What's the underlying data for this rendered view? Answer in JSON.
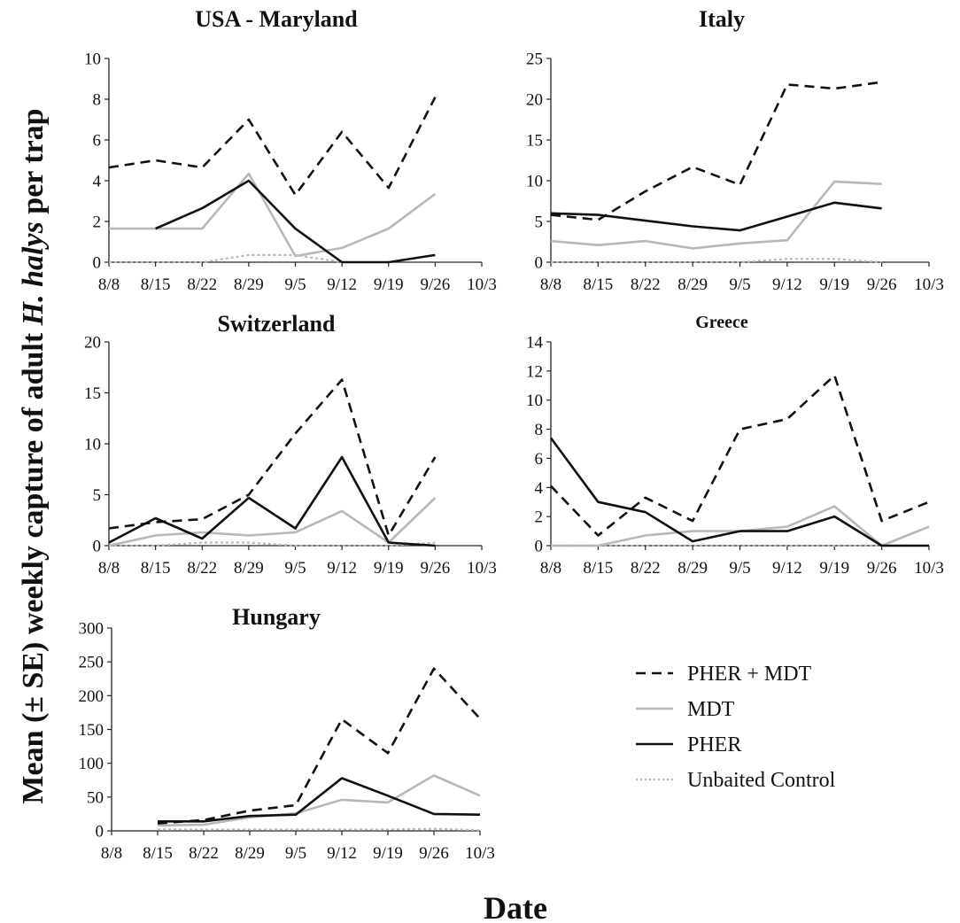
{
  "y_axis_label": "Mean (± SE) weekly capture of adult H. halys per trap",
  "y_axis_label_parts": [
    "Mean (± SE) weekly capture of adult ",
    "H. halys",
    " per trap"
  ],
  "x_axis_label": "Date",
  "legend": [
    {
      "key": "pher_mdt",
      "label": "PHER + MDT"
    },
    {
      "key": "mdt",
      "label": "MDT"
    },
    {
      "key": "pher",
      "label": "PHER"
    },
    {
      "key": "control",
      "label": "Unbaited Control"
    }
  ],
  "series_styles": {
    "pher_mdt": {
      "color": "#111111",
      "dash": "11,7",
      "width": 2.6
    },
    "mdt": {
      "color": "#b8b8b8",
      "dash": "",
      "width": 2.6
    },
    "pher": {
      "color": "#111111",
      "dash": "",
      "width": 2.6
    },
    "control": {
      "color": "#b8b8b8",
      "dash": "3,3",
      "width": 2.2
    },
    "control_legend": {
      "color": "#b8b8b8",
      "dash": "2,3",
      "width": 2.2
    }
  },
  "chart_data": [
    {
      "type": "line",
      "title": "USA - Maryland",
      "categories": [
        "8/8",
        "8/15",
        "8/22",
        "8/29",
        "9/5",
        "9/12",
        "9/19",
        "9/26",
        "10/3"
      ],
      "yticks": [
        0,
        2,
        4,
        6,
        8,
        10
      ],
      "ylim": [
        0,
        10
      ],
      "series": [
        {
          "key": "pher_mdt",
          "name": "PHER + MDT",
          "values": [
            4.65,
            5.0,
            4.65,
            7.0,
            3.3,
            6.4,
            3.65,
            8.1,
            null
          ]
        },
        {
          "key": "mdt",
          "name": "MDT",
          "values": [
            1.65,
            1.65,
            1.65,
            4.35,
            0.3,
            0.7,
            1.65,
            3.35,
            null
          ]
        },
        {
          "key": "pher",
          "name": "PHER",
          "values": [
            null,
            1.65,
            2.65,
            4.0,
            1.65,
            0,
            0,
            0.35,
            null
          ]
        },
        {
          "key": "control",
          "name": "Unbaited Control",
          "values": [
            0,
            0,
            0,
            0.35,
            0.35,
            0,
            null,
            null,
            null
          ]
        }
      ]
    },
    {
      "type": "line",
      "title": "Italy",
      "categories": [
        "8/8",
        "8/15",
        "8/22",
        "8/29",
        "9/5",
        "9/12",
        "9/19",
        "9/26",
        "10/3"
      ],
      "yticks": [
        0,
        5,
        10,
        15,
        20,
        25
      ],
      "ylim": [
        0,
        25
      ],
      "series": [
        {
          "key": "pher_mdt",
          "name": "PHER + MDT",
          "values": [
            5.8,
            5.2,
            8.7,
            11.7,
            9.5,
            21.8,
            21.3,
            22.1,
            null
          ]
        },
        {
          "key": "mdt",
          "name": "MDT",
          "values": [
            2.6,
            2.1,
            2.6,
            1.7,
            2.3,
            2.7,
            9.9,
            9.6,
            null
          ]
        },
        {
          "key": "pher",
          "name": "PHER",
          "values": [
            6.0,
            5.8,
            5.1,
            4.4,
            3.9,
            5.6,
            7.3,
            6.6,
            null
          ]
        },
        {
          "key": "control",
          "name": "Unbaited Control",
          "values": [
            0,
            0,
            0,
            0,
            0,
            0.4,
            0.4,
            0,
            null
          ]
        }
      ]
    },
    {
      "type": "line",
      "title": "Switzerland",
      "categories": [
        "8/8",
        "8/15",
        "8/22",
        "8/29",
        "9/5",
        "9/12",
        "9/19",
        "9/26",
        "10/3"
      ],
      "yticks": [
        0,
        5,
        10,
        15,
        20
      ],
      "ylim": [
        0,
        20
      ],
      "series": [
        {
          "key": "pher_mdt",
          "name": "PHER + MDT",
          "values": [
            1.7,
            2.3,
            2.6,
            5.0,
            11.0,
            16.3,
            1.0,
            8.7,
            null
          ]
        },
        {
          "key": "mdt",
          "name": "MDT",
          "values": [
            0,
            1.0,
            1.3,
            1.0,
            1.3,
            3.4,
            0.3,
            4.7,
            null
          ]
        },
        {
          "key": "pher",
          "name": "PHER",
          "values": [
            0.3,
            2.7,
            0.7,
            4.7,
            1.7,
            8.7,
            0.3,
            0,
            null
          ]
        },
        {
          "key": "control",
          "name": "Unbaited Control",
          "values": [
            0,
            0,
            0.3,
            0.3,
            0,
            0,
            0,
            0.3,
            null
          ]
        }
      ]
    },
    {
      "type": "line",
      "title": "Greece",
      "categories": [
        "8/8",
        "8/15",
        "8/22",
        "8/29",
        "9/5",
        "9/12",
        "9/19",
        "9/26",
        "10/3"
      ],
      "yticks": [
        0,
        2,
        4,
        6,
        8,
        10,
        12,
        14
      ],
      "ylim": [
        0,
        14
      ],
      "series": [
        {
          "key": "pher_mdt",
          "name": "PHER + MDT",
          "values": [
            4.1,
            0.7,
            3.3,
            1.7,
            8.0,
            8.7,
            11.7,
            1.7,
            3.0
          ]
        },
        {
          "key": "mdt",
          "name": "MDT",
          "values": [
            0,
            0,
            0.7,
            1.0,
            1.0,
            1.3,
            2.7,
            0,
            1.3
          ]
        },
        {
          "key": "pher",
          "name": "PHER",
          "values": [
            7.4,
            3.0,
            2.3,
            0.3,
            1.0,
            1.0,
            2.0,
            0,
            0
          ]
        },
        {
          "key": "control",
          "name": "Unbaited Control",
          "values": [
            0,
            0,
            0,
            0,
            0,
            0,
            0,
            0,
            0
          ]
        }
      ]
    },
    {
      "type": "line",
      "title": "Hungary",
      "categories": [
        "8/8",
        "8/15",
        "8/22",
        "8/29",
        "9/5",
        "9/12",
        "9/19",
        "9/26",
        "10/3"
      ],
      "yticks": [
        0,
        50,
        100,
        150,
        200,
        250,
        300
      ],
      "ylim": [
        0,
        300
      ],
      "series": [
        {
          "key": "pher_mdt",
          "name": "PHER + MDT",
          "values": [
            null,
            11,
            16,
            30,
            38,
            165,
            115,
            240,
            166
          ]
        },
        {
          "key": "mdt",
          "name": "MDT",
          "values": [
            null,
            8,
            9,
            20,
            26,
            46,
            42,
            82,
            52
          ]
        },
        {
          "key": "pher",
          "name": "PHER",
          "values": [
            null,
            14,
            14,
            22,
            24,
            78,
            52,
            25,
            24
          ]
        },
        {
          "key": "control",
          "name": "Unbaited Control",
          "values": [
            null,
            2,
            2,
            2,
            2,
            2,
            2,
            3,
            1
          ]
        }
      ]
    }
  ]
}
